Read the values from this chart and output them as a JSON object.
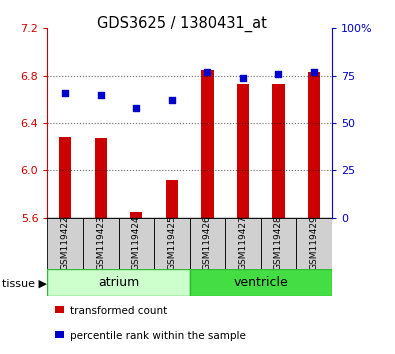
{
  "title": "GDS3625 / 1380431_at",
  "samples": [
    "GSM119422",
    "GSM119423",
    "GSM119424",
    "GSM119425",
    "GSM119426",
    "GSM119427",
    "GSM119428",
    "GSM119429"
  ],
  "bar_values": [
    6.28,
    6.27,
    5.65,
    5.92,
    6.85,
    6.73,
    6.73,
    6.83
  ],
  "scatter_values": [
    66,
    65,
    58,
    62,
    77,
    74,
    76,
    77
  ],
  "bar_color": "#cc0000",
  "scatter_color": "#0000cc",
  "ymin": 5.6,
  "ymax": 7.2,
  "y2min": 0,
  "y2max": 100,
  "yticks": [
    5.6,
    6.0,
    6.4,
    6.8,
    7.2
  ],
  "y2ticks": [
    0,
    25,
    50,
    75,
    100
  ],
  "groups": [
    {
      "label": "atrium",
      "start": 0,
      "end": 3,
      "color": "#ccffcc",
      "border_color": "#33bb33"
    },
    {
      "label": "ventricle",
      "start": 4,
      "end": 7,
      "color": "#44dd44",
      "border_color": "#33bb33"
    }
  ],
  "tissue_label": "tissue",
  "legend_bar_label": "transformed count",
  "legend_scatter_label": "percentile rank within the sample",
  "tick_color_left": "#cc0000",
  "tick_color_right": "#0000cc"
}
